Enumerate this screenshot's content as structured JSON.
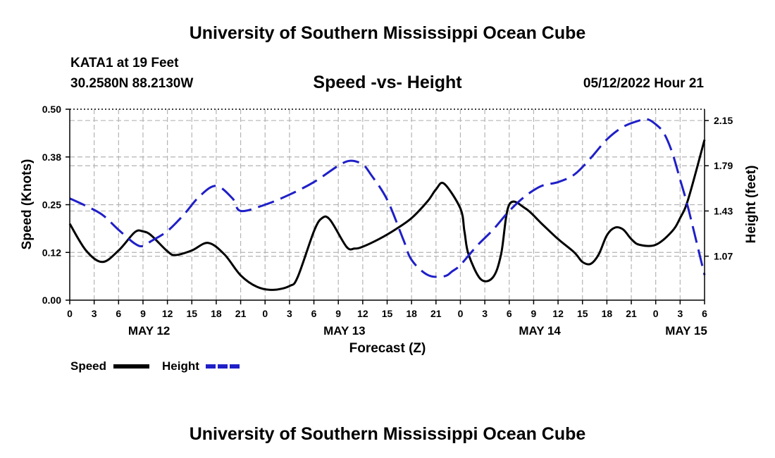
{
  "header": {
    "title": "University of Southern Mississippi Ocean Cube",
    "station_line1": "KATA1 at 19 Feet",
    "station_line2": "30.2580N  88.2130W",
    "date_line": "05/12/2022 Hour 21",
    "footer_title": "University of Southern Mississippi Ocean Cube"
  },
  "colors": {
    "speed": "#000000",
    "height": "#1f1fc8",
    "grid": "#b4b4b4"
  },
  "chart_data": {
    "type": "line",
    "title": "Speed -vs- Height",
    "xlabel": "Forecast (Z)",
    "ylabel": "Speed (Knots)",
    "y2label": "Height (feet)",
    "xlim": [
      0,
      78
    ],
    "ylim": [
      0,
      0.5
    ],
    "y2lim": [
      0.72,
      2.24
    ],
    "x_ticks": [
      0,
      3,
      6,
      9,
      12,
      15,
      18,
      21,
      24,
      27,
      30,
      33,
      36,
      39,
      42,
      45,
      48,
      51,
      54,
      57,
      60,
      63,
      66,
      69,
      72,
      75,
      78
    ],
    "x_tick_labels": [
      "0",
      "3",
      "6",
      "9",
      "12",
      "15",
      "18",
      "21",
      "0",
      "3",
      "6",
      "9",
      "12",
      "15",
      "18",
      "21",
      "0",
      "3",
      "6",
      "9",
      "12",
      "15",
      "18",
      "21",
      "0",
      "3",
      "6"
    ],
    "y_ticks": [
      0.0,
      0.125,
      0.25,
      0.375,
      0.5
    ],
    "y_tick_labels": [
      "0.00",
      "0.12",
      "0.25",
      "0.38",
      "0.50"
    ],
    "y2_ticks": [
      1.07,
      1.43,
      1.79,
      2.15
    ],
    "y2_tick_labels": [
      "1.07",
      "1.43",
      "1.79",
      "2.15"
    ],
    "days": [
      {
        "x": 9.75,
        "label": "MAY 12"
      },
      {
        "x": 33.75,
        "label": "MAY 13"
      },
      {
        "x": 57.75,
        "label": "MAY 14"
      },
      {
        "x": 75.75,
        "label": "MAY 15"
      }
    ],
    "series": [
      {
        "name": "Speed",
        "axis": "left",
        "style": "solid",
        "x": [
          0,
          2,
          4,
          6,
          8,
          9,
          10,
          12,
          13,
          15,
          17,
          19,
          21,
          23,
          25,
          27,
          28,
          30,
          31,
          32,
          34,
          35,
          36,
          38,
          40,
          42,
          44,
          45,
          46,
          48,
          48.5,
          49,
          50.5,
          52,
          53,
          54,
          56,
          58,
          60,
          62,
          63,
          64,
          65,
          66,
          67,
          68,
          69,
          70,
          72,
          74,
          75,
          76,
          78
        ],
        "values": [
          0.2,
          0.13,
          0.1,
          0.13,
          0.178,
          0.18,
          0.17,
          0.128,
          0.118,
          0.13,
          0.15,
          0.12,
          0.065,
          0.035,
          0.027,
          0.037,
          0.06,
          0.18,
          0.215,
          0.21,
          0.14,
          0.135,
          0.14,
          0.16,
          0.185,
          0.215,
          0.26,
          0.29,
          0.305,
          0.24,
          0.18,
          0.12,
          0.055,
          0.06,
          0.12,
          0.25,
          0.24,
          0.2,
          0.16,
          0.125,
          0.1,
          0.095,
          0.12,
          0.17,
          0.19,
          0.185,
          0.16,
          0.145,
          0.145,
          0.18,
          0.215,
          0.265,
          0.42
        ]
      },
      {
        "name": "Height",
        "axis": "right",
        "style": "dashed",
        "x": [
          0,
          2,
          4,
          6,
          8,
          9,
          10,
          12,
          14,
          16,
          18,
          20,
          21,
          24,
          27,
          30,
          33,
          34.5,
          36,
          37,
          39,
          41,
          42,
          44,
          46,
          47,
          48,
          50,
          52,
          54,
          56,
          58,
          60,
          62,
          64,
          66,
          68,
          70,
          71,
          72,
          73,
          74,
          75,
          76,
          78
        ],
        "values": [
          1.53,
          1.47,
          1.4,
          1.28,
          1.17,
          1.15,
          1.19,
          1.27,
          1.4,
          1.55,
          1.63,
          1.53,
          1.43,
          1.48,
          1.56,
          1.66,
          1.79,
          1.83,
          1.8,
          1.72,
          1.52,
          1.2,
          1.04,
          0.92,
          0.91,
          0.95,
          1.0,
          1.15,
          1.28,
          1.43,
          1.55,
          1.63,
          1.66,
          1.72,
          1.85,
          2.0,
          2.1,
          2.15,
          2.16,
          2.12,
          2.05,
          1.9,
          1.68,
          1.45,
          0.92
        ]
      }
    ],
    "legend": {
      "position": "bottom-left",
      "entries": [
        "Speed",
        "Height"
      ]
    }
  }
}
